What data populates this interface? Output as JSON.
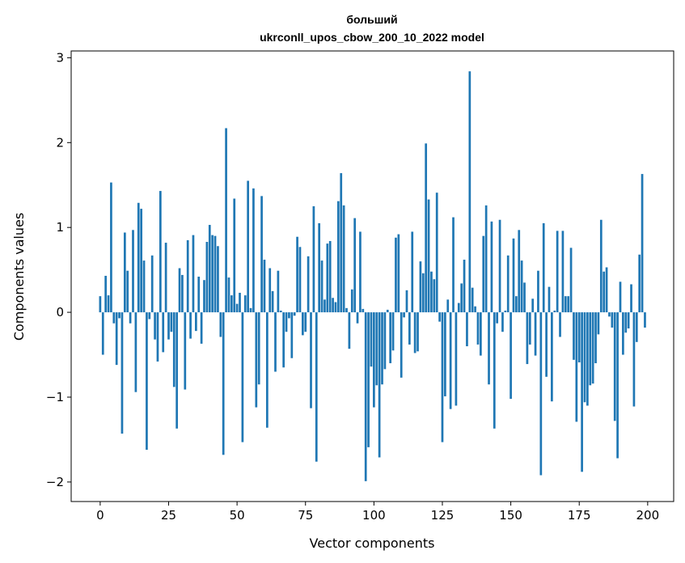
{
  "chart_data": {
    "type": "bar",
    "title_line1": "больший",
    "title_line2": "ukrconll_upos_cbow_200_10_2022 model",
    "xlabel": "Vector components",
    "ylabel": "Components values",
    "xlim": [
      -10.6,
      209.5
    ],
    "ylim": [
      -2.23,
      3.08
    ],
    "xticks": [
      0,
      25,
      50,
      75,
      100,
      125,
      150,
      175,
      200
    ],
    "yticks": [
      -2,
      -1,
      0,
      1,
      2,
      3
    ],
    "ytick_labels": [
      "−2",
      "−1",
      "0",
      "1",
      "2",
      "3"
    ],
    "grid": false,
    "bar_color": "#1f77b4",
    "values": [
      0.19,
      -0.5,
      0.43,
      0.2,
      1.53,
      -0.13,
      -0.62,
      -0.07,
      -1.43,
      0.94,
      0.49,
      -0.13,
      0.97,
      -0.94,
      1.29,
      1.22,
      0.61,
      -1.62,
      -0.08,
      0.67,
      -0.32,
      -0.58,
      1.43,
      -0.47,
      0.82,
      -0.32,
      -0.23,
      -0.88,
      -1.37,
      0.52,
      0.44,
      -0.91,
      0.85,
      -0.31,
      0.91,
      -0.22,
      0.42,
      -0.37,
      0.38,
      0.83,
      1.03,
      0.91,
      0.9,
      0.78,
      -0.29,
      -1.68,
      2.17,
      0.41,
      0.2,
      1.34,
      0.1,
      0.23,
      -1.53,
      0.2,
      1.55,
      0.05,
      1.46,
      -1.12,
      -0.85,
      1.37,
      0.62,
      -1.36,
      0.52,
      0.25,
      -0.7,
      0.49,
      0.02,
      -0.65,
      -0.23,
      -0.07,
      -0.54,
      -0.04,
      0.89,
      0.77,
      -0.27,
      -0.23,
      0.66,
      -1.13,
      1.25,
      -1.76,
      1.05,
      0.61,
      0.15,
      0.81,
      0.84,
      0.17,
      0.12,
      1.31,
      1.64,
      1.26,
      0.05,
      -0.43,
      0.27,
      1.11,
      -0.13,
      0.95,
      0.04,
      -1.99,
      -1.59,
      -0.64,
      -1.12,
      -0.86,
      -1.71,
      -0.85,
      -0.67,
      0.03,
      -0.6,
      -0.45,
      0.88,
      0.92,
      -0.77,
      -0.06,
      0.26,
      -0.38,
      0.95,
      -0.48,
      -0.46,
      0.6,
      0.46,
      1.99,
      1.33,
      0.48,
      0.39,
      1.41,
      -0.11,
      -1.53,
      -0.99,
      0.15,
      -1.14,
      1.12,
      -1.1,
      0.11,
      0.34,
      0.62,
      -0.4,
      2.84,
      0.29,
      0.07,
      -0.38,
      -0.51,
      0.9,
      1.26,
      -0.85,
      1.07,
      -1.37,
      -0.13,
      1.09,
      -0.23,
      0.02,
      0.67,
      -1.02,
      0.87,
      0.19,
      0.97,
      0.61,
      0.35,
      -0.61,
      -0.38,
      0.16,
      -0.51,
      0.49,
      -1.92,
      1.05,
      -0.76,
      0.3,
      -1.05,
      0.02,
      0.96,
      -0.29,
      0.96,
      0.19,
      0.19,
      0.76,
      -0.56,
      -1.29,
      -0.59,
      -1.88,
      -1.06,
      -1.1,
      -0.86,
      -0.84,
      -0.6,
      -0.26,
      1.09,
      0.48,
      0.53,
      -0.05,
      -0.18,
      -1.28,
      -1.72,
      0.36,
      -0.5,
      -0.24,
      -0.19,
      0.33,
      -1.11,
      -0.35,
      0.68,
      1.63,
      -0.18
    ]
  }
}
